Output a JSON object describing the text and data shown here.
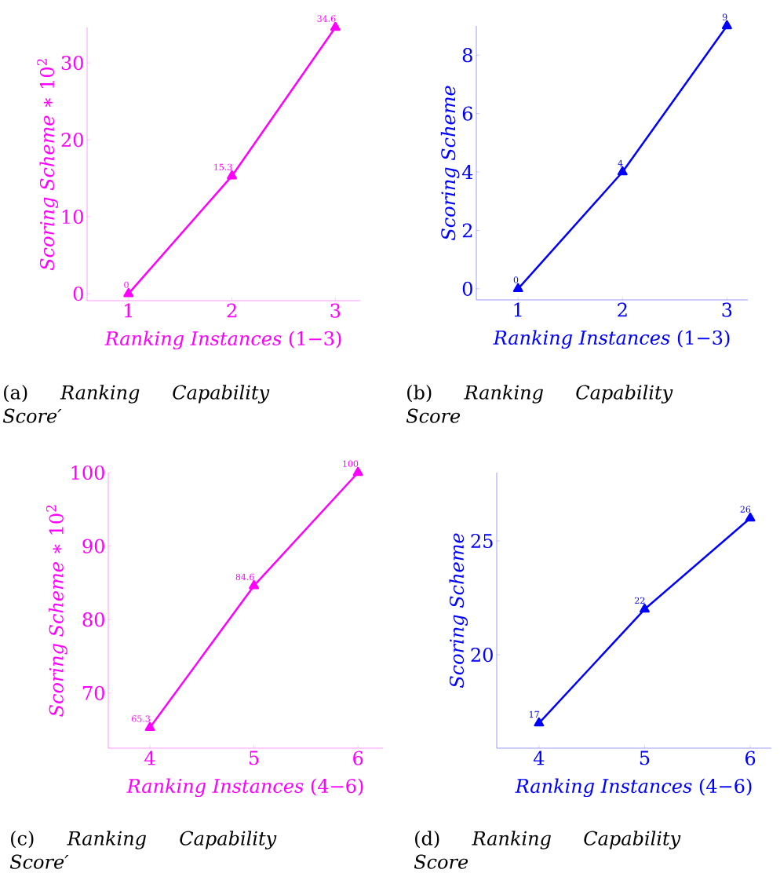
{
  "chart_data": [
    {
      "type": "line",
      "title": "(a) *Ranking Capability Score′*",
      "xlabel": "*Ranking Instances* (1−3)",
      "ylabel": "*Scoring Scheme* ∗ 10$^{2}$",
      "x": [
        1,
        2,
        3
      ],
      "values": [
        0,
        15.3,
        34.6
      ],
      "color": "#ff00ff",
      "xlim": [
        0.6,
        3.24
      ],
      "ylim": [
        -0.9,
        34.6
      ],
      "xticks": [
        1,
        2,
        3
      ],
      "yticks": [
        0,
        10,
        20,
        30
      ],
      "marker": "triangle",
      "line_style": "solid",
      "data_labels": true
    },
    {
      "type": "line",
      "title": "(b) *Ranking Capability Score*",
      "xlabel": "*Ranking Instances* (1−3)",
      "ylabel": "*Scoring Scheme*",
      "x": [
        1,
        2,
        3
      ],
      "values": [
        0,
        4,
        9
      ],
      "color": "#0000ff",
      "xlim": [
        0.6,
        3.2
      ],
      "ylim": [
        -0.38,
        9
      ],
      "xticks": [
        1,
        2,
        3
      ],
      "yticks": [
        0,
        2,
        4,
        6,
        8
      ],
      "marker": "triangle",
      "line_style": "solid",
      "data_labels": true
    },
    {
      "type": "line",
      "title": "(c) *Ranking Capability Score′*",
      "xlabel": "*Ranking Instances* (4−6)",
      "ylabel": "*Scoring Scheme* ∗ 10$^{2}$",
      "x": [
        4,
        5,
        6
      ],
      "values": [
        65.3,
        84.6,
        100
      ],
      "color": "#ff00ff",
      "xlim": [
        3.6,
        6.24
      ],
      "ylim": [
        62.5,
        100
      ],
      "xticks": [
        4,
        5,
        6
      ],
      "yticks": [
        70,
        80,
        90,
        100
      ],
      "marker": "triangle",
      "line_style": "solid",
      "data_labels": true
    },
    {
      "type": "line",
      "title": "(d) *Ranking Capability Score*",
      "xlabel": "*Ranking Instances* (4−6)",
      "ylabel": "*Scoring Scheme*",
      "x": [
        4,
        5,
        6
      ],
      "values": [
        17,
        22,
        26
      ],
      "color": "#0000ff",
      "xlim": [
        3.6,
        6.2
      ],
      "ylim": [
        15.9,
        28
      ],
      "xticks": [
        4,
        5,
        6
      ],
      "yticks": [
        20,
        25
      ],
      "marker": "triangle",
      "line_style": "solid",
      "data_labels": true
    }
  ]
}
